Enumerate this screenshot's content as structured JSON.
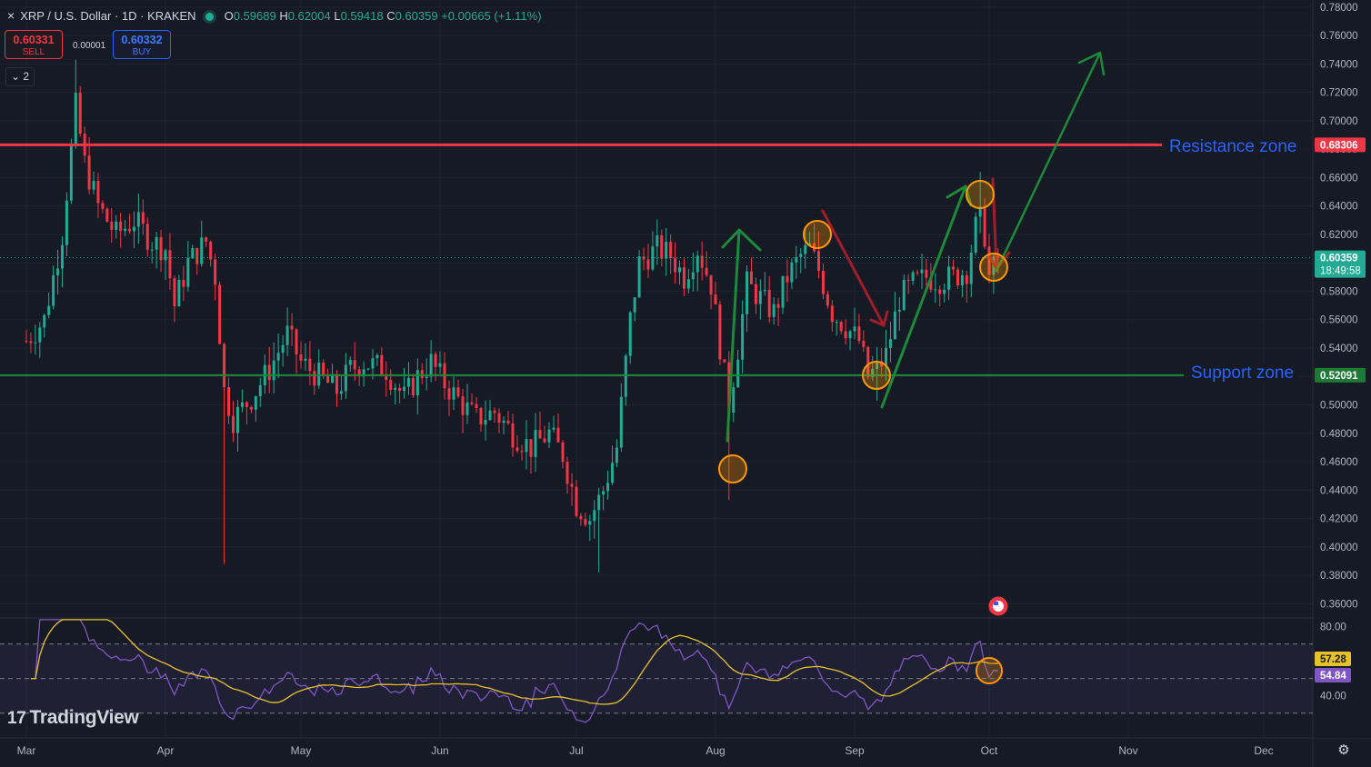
{
  "header": {
    "close_glyph": "×",
    "symbol": "XRP / U.S. Dollar · 1D · KRAKEN",
    "o_label": "O",
    "o_value": "0.59689",
    "h_label": "H",
    "h_value": "0.62004",
    "l_label": "L",
    "l_value": "0.59418",
    "c_label": "C",
    "c_value": "0.60359",
    "change": "+0.00665 (+1.11%)"
  },
  "trade": {
    "sell_price": "0.60331",
    "sell_label": "SELL",
    "spread": "0.00001",
    "buy_price": "0.60332",
    "buy_label": "BUY"
  },
  "collapse_label": "⌄ 2",
  "logo_text": "TradingView",
  "logo_mark": "17",
  "settings_icon_glyph": "⚙",
  "annotations": {
    "resistance_label": "Resistance zone",
    "support_label": "Support zone"
  },
  "colors": {
    "up": "#22ab94",
    "down": "#f23645",
    "resistance": "#f23645",
    "support": "#1c8a3a",
    "rsi": "#7e57c2",
    "rsi_ma": "#e6c12a",
    "zone_text": "#2962ff",
    "circle": "#ff9800"
  },
  "chart_data": [
    {
      "type": "candlestick",
      "price_scale": {
        "ylim": [
          0.35,
          0.785
        ],
        "ticks": [
          "0.78000",
          "0.76000",
          "0.74000",
          "0.72000",
          "0.70000",
          "0.68000",
          "0.66000",
          "0.64000",
          "0.62000",
          "0.60000",
          "0.58000",
          "0.56000",
          "0.54000",
          "0.52000",
          "0.50000",
          "0.48000",
          "0.46000",
          "0.44000",
          "0.42000",
          "0.40000",
          "0.38000",
          "0.36000"
        ]
      },
      "time_axis": {
        "labels": [
          "Mar",
          "Apr",
          "May",
          "Jun",
          "Jul",
          "Aug",
          "Sep",
          "Oct",
          "Nov",
          "Dec"
        ]
      },
      "last_price": {
        "value": 0.60359,
        "label": "0.60359",
        "countdown": "18:49:58"
      },
      "resistance": {
        "value": 0.68306,
        "label": "0.68306"
      },
      "support": {
        "value": 0.52091,
        "label": "0.52091"
      },
      "key_prices": [
        {
          "date": "Mar 11",
          "high": 0.743
        },
        {
          "date": "Apr 13",
          "low": 0.388
        },
        {
          "date": "Jul 5",
          "low": 0.382
        },
        {
          "date": "Aug 5",
          "low": 0.433
        },
        {
          "date": "Aug 24",
          "high": 0.622
        },
        {
          "date": "Sep 6",
          "low": 0.503
        },
        {
          "date": "Sep 29",
          "high": 0.664
        },
        {
          "date": "Oct 2",
          "low": 0.578
        }
      ]
    },
    {
      "type": "line",
      "name": "RSI",
      "ylim": [
        22,
        85
      ],
      "ticks": [
        "80.00",
        "40.00"
      ],
      "levels": [
        70,
        50,
        30
      ],
      "series": [
        {
          "name": "",
          "last_label": "57.28"
        },
        {
          "name": "",
          "last_label": "54.84"
        }
      ]
    }
  ]
}
